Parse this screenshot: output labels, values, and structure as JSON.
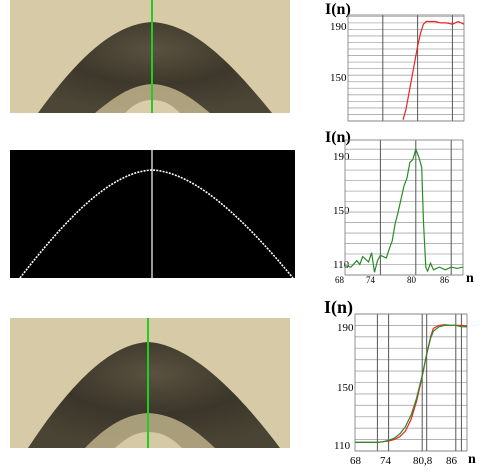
{
  "colors": {
    "background": "#d5c9a4",
    "dark_band": "#3e3a2c",
    "profile_line": "#22cc22",
    "red_curve": "#ee2222",
    "green_curve": "#2a8a2a",
    "edge_curve": "#ffffff",
    "grid": "#999999"
  },
  "panels": [
    {
      "ylabel": "I(n)",
      "y_ticks": [
        "190",
        "150"
      ],
      "x_ticks": []
    },
    {
      "ylabel": "I(n)",
      "xlabel": "n",
      "y_ticks": [
        "190",
        "150",
        "110"
      ],
      "x_ticks": [
        "68",
        "74",
        "80",
        "86"
      ]
    },
    {
      "ylabel": "I(n)",
      "xlabel": "n",
      "y_ticks": [
        "190",
        "150",
        "110"
      ],
      "x_ticks": [
        "68",
        "74",
        "80,8",
        "86"
      ]
    }
  ],
  "chart_data": [
    {
      "type": "line",
      "series": [
        {
          "color": "#ee2222",
          "x": [
            77.5,
            78,
            78.5,
            79,
            79.5,
            80,
            80.5,
            81,
            81.5,
            82,
            83,
            84,
            85,
            86,
            87,
            88
          ],
          "values": [
            118,
            126,
            138,
            150,
            162,
            174,
            184,
            191,
            193,
            193,
            193,
            192,
            192,
            191,
            193,
            191
          ]
        }
      ]
    },
    {
      "type": "line",
      "series": [
        {
          "color": "#2a8a2a",
          "x": [
            68,
            69,
            70,
            70.5,
            71,
            72,
            72.5,
            73,
            73.5,
            74,
            75,
            75.5,
            76,
            76.5,
            77,
            78,
            78.5,
            79,
            79.5,
            80,
            80.5,
            81,
            81.3,
            81.7,
            82,
            82.5,
            83,
            84,
            85,
            86,
            87,
            88
          ],
          "values": [
            109,
            108,
            113,
            110,
            116,
            112,
            119,
            104,
            113,
            117,
            115,
            122,
            128,
            141,
            150,
            170,
            176,
            188,
            190,
            198,
            192,
            184,
            142,
            108,
            105,
            111,
            106,
            108,
            106,
            108,
            107,
            108
          ]
        }
      ]
    },
    {
      "type": "line",
      "series": [
        {
          "color": "#ee2222",
          "x": [
            68,
            70,
            72,
            73,
            74,
            75,
            76,
            77,
            78,
            79,
            80,
            80.8,
            81.5,
            82,
            83,
            84,
            85,
            86,
            87,
            88
          ],
          "values": [
            110,
            110,
            110,
            110.5,
            111,
            112,
            114,
            118,
            126,
            139,
            156,
            172,
            184,
            190,
            192,
            192.5,
            192,
            192,
            192,
            191.5
          ]
        },
        {
          "color": "#2a8a2a",
          "x": [
            68,
            70,
            72,
            73,
            74,
            75,
            76,
            77,
            78,
            79,
            80,
            80.8,
            81.5,
            82,
            83,
            84,
            85,
            86,
            87,
            88
          ],
          "values": [
            110,
            110,
            110,
            110.5,
            111.5,
            113,
            116,
            121,
            129,
            141,
            157,
            172,
            183,
            188,
            191,
            192,
            192,
            192,
            191,
            191
          ]
        }
      ]
    }
  ]
}
